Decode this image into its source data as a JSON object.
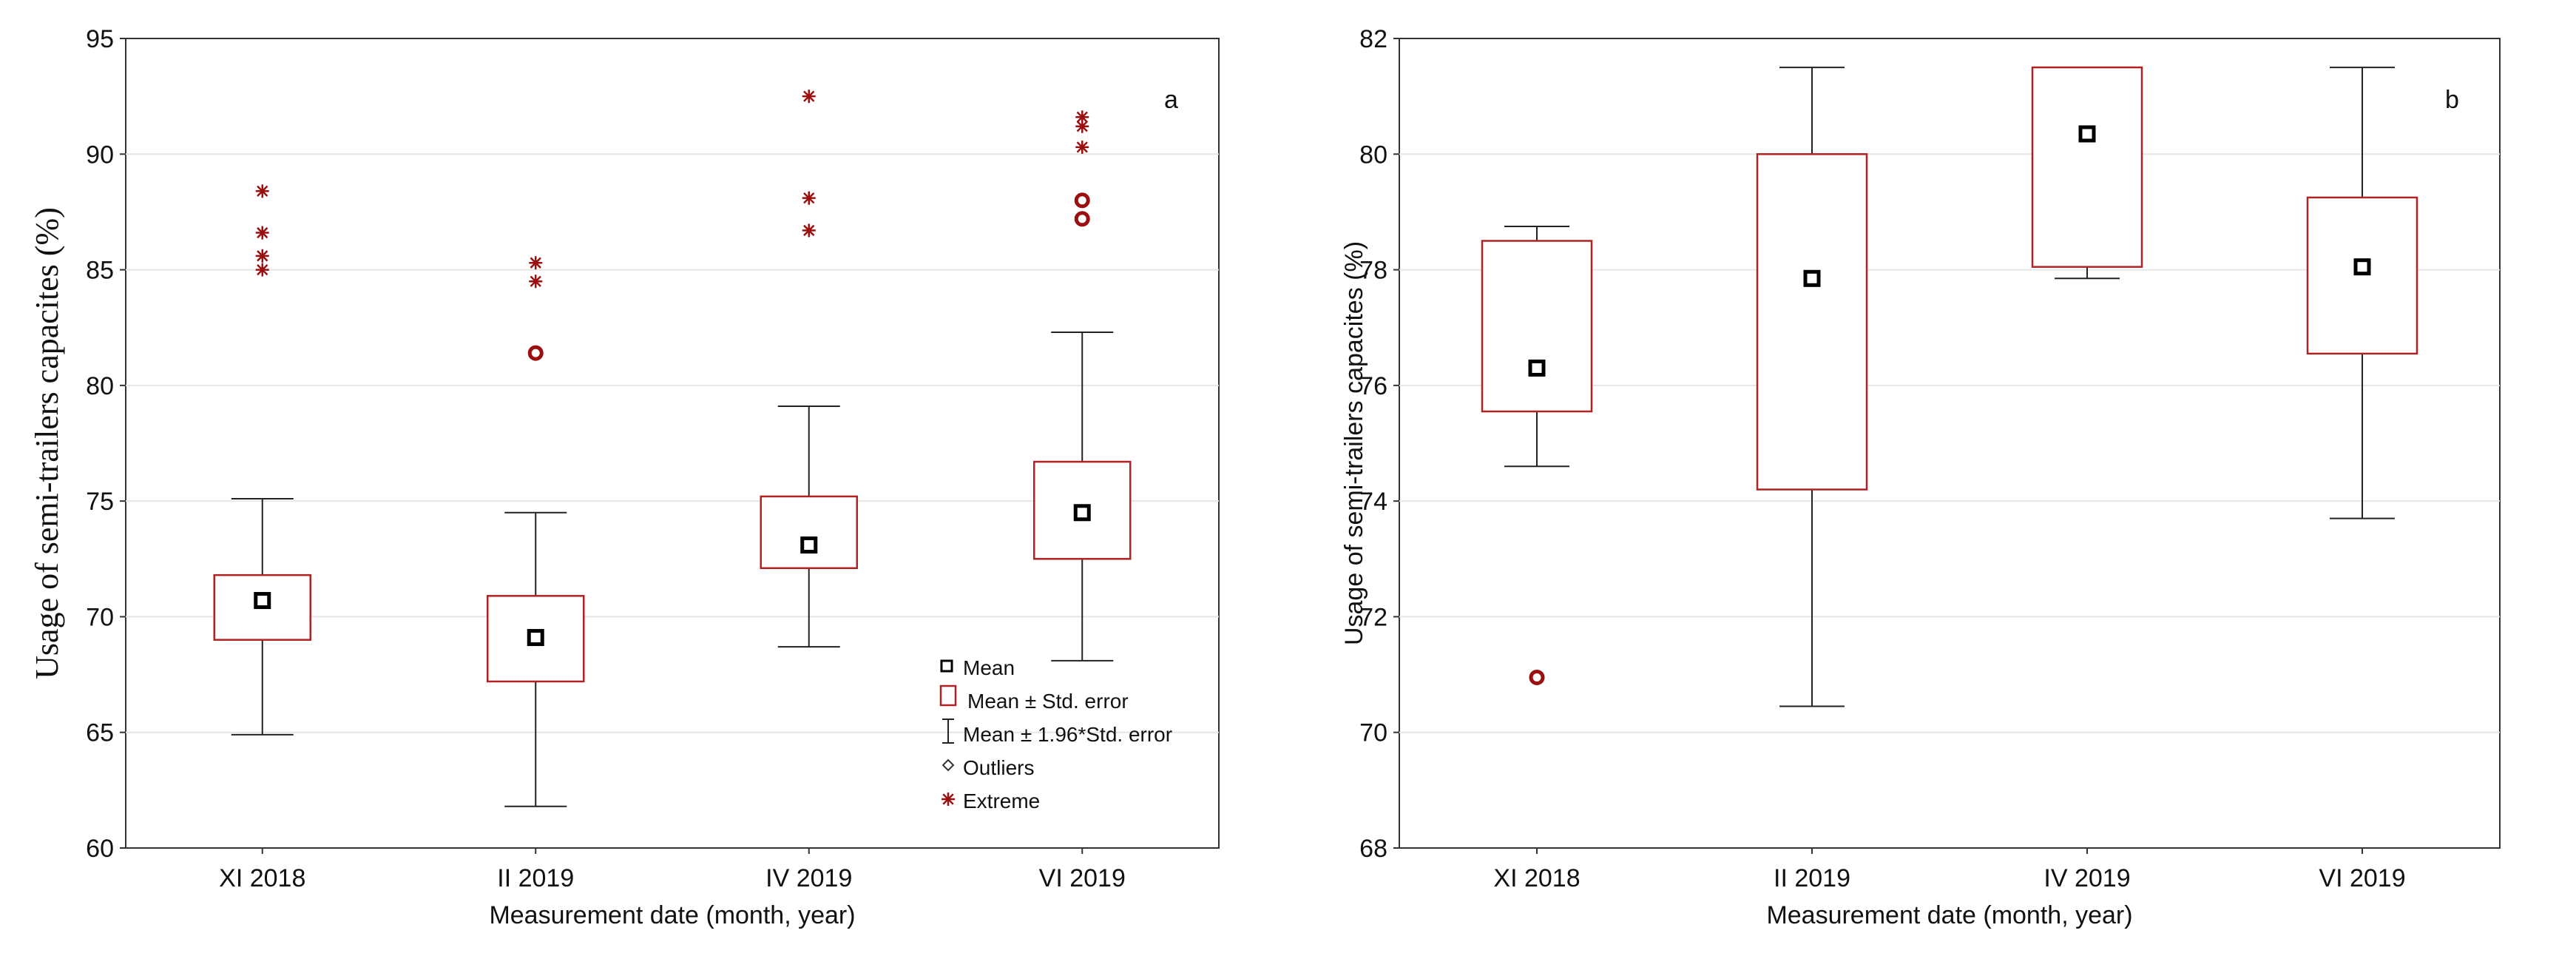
{
  "chart_data": [
    {
      "type": "box",
      "panel_label": "a",
      "xlabel": "Measurement date (month, year)",
      "ylabel": "Usage of semi-trailers capacites (%)",
      "ylim": [
        60,
        95
      ],
      "yticks": [
        60,
        65,
        70,
        75,
        80,
        85,
        90,
        95
      ],
      "grid": true,
      "categories": [
        "XI 2018",
        "II 2019",
        "IV 2019",
        "VI 2019"
      ],
      "series": [
        {
          "name": "XI 2018",
          "mean": 70.7,
          "se_low": 69.0,
          "se_high": 71.8,
          "ci_low": 64.9,
          "ci_high": 75.1,
          "outliers": [],
          "extremes": [
            85.0,
            85.6,
            86.6,
            88.4
          ]
        },
        {
          "name": "II 2019",
          "mean": 69.1,
          "se_low": 67.2,
          "se_high": 70.9,
          "ci_low": 61.8,
          "ci_high": 74.5,
          "outliers": [
            81.4
          ],
          "extremes": [
            84.5,
            85.3
          ]
        },
        {
          "name": "IV 2019",
          "mean": 73.1,
          "se_low": 72.1,
          "se_high": 75.2,
          "ci_low": 68.7,
          "ci_high": 79.1,
          "outliers": [],
          "extremes": [
            86.7,
            88.1,
            92.5
          ]
        },
        {
          "name": "VI 2019",
          "mean": 74.5,
          "se_low": 72.5,
          "se_high": 76.7,
          "ci_low": 68.1,
          "ci_high": 82.3,
          "outliers": [
            87.2,
            88.0
          ],
          "extremes": [
            90.3,
            91.2,
            91.6
          ]
        }
      ],
      "legend": {
        "position": "bottom-right",
        "items": [
          {
            "symbol": "mean",
            "label": "Mean"
          },
          {
            "symbol": "box",
            "label": "Mean ± Std. error"
          },
          {
            "symbol": "whisker",
            "label": "Mean ±  1.96*Std. error"
          },
          {
            "symbol": "outlier",
            "label": "Outliers"
          },
          {
            "symbol": "extreme",
            "label": "Extreme"
          }
        ]
      }
    },
    {
      "type": "box",
      "panel_label": "b",
      "xlabel": "Measurement date (month, year)",
      "ylabel": "Usage of semi-trailers capacites (%)",
      "ylim": [
        68,
        82
      ],
      "yticks": [
        68,
        70,
        72,
        74,
        76,
        78,
        80,
        82
      ],
      "grid": true,
      "categories": [
        "XI 2018",
        "II 2019",
        "IV 2019",
        "VI 2019"
      ],
      "series": [
        {
          "name": "XI 2018",
          "mean": 76.3,
          "se_low": 75.55,
          "se_high": 78.5,
          "ci_low": 74.6,
          "ci_high": 78.75,
          "outliers": [
            70.95
          ],
          "extremes": []
        },
        {
          "name": "II 2019",
          "mean": 77.85,
          "se_low": 74.2,
          "se_high": 80.0,
          "ci_low": 70.45,
          "ci_high": 81.5,
          "outliers": [],
          "extremes": []
        },
        {
          "name": "IV 2019",
          "mean": 80.35,
          "se_low": 78.05,
          "se_high": 81.5,
          "ci_low": 77.85,
          "ci_high": 81.5,
          "outliers": [],
          "extremes": []
        },
        {
          "name": "VI 2019",
          "mean": 78.05,
          "se_low": 76.55,
          "se_high": 79.25,
          "ci_low": 73.7,
          "ci_high": 81.5,
          "outliers": [],
          "extremes": []
        }
      ]
    }
  ],
  "colors": {
    "box_stroke": "#b22222",
    "outlier": "#9b0f0f",
    "extreme": "#9b0f0f",
    "whisker": "#222222",
    "mean": "#000000",
    "grid": "#e6e6e6",
    "axis": "#333333"
  }
}
